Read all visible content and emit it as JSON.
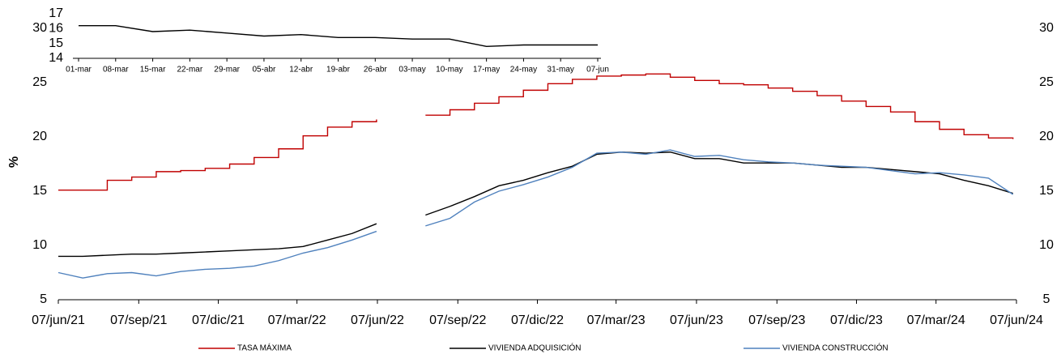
{
  "chart_data": [
    {
      "type": "line",
      "ylabel": "%",
      "x": [
        "2021-06-07",
        "2021-07-05",
        "2021-08-02",
        "2021-08-30",
        "2021-09-27",
        "2021-10-25",
        "2021-11-22",
        "2021-12-20",
        "2022-01-17",
        "2022-02-14",
        "2022-03-14",
        "2022-04-11",
        "2022-05-09",
        "2022-06-06",
        "2022-07-04",
        "2022-08-01",
        "2022-08-29",
        "2022-09-26",
        "2022-10-24",
        "2022-11-21",
        "2022-12-19",
        "2023-01-16",
        "2023-02-13",
        "2023-03-13",
        "2023-04-10",
        "2023-05-08",
        "2023-06-05",
        "2023-07-03",
        "2023-07-31",
        "2023-08-28",
        "2023-09-25",
        "2023-10-23",
        "2023-11-20",
        "2023-12-18",
        "2024-01-15",
        "2024-02-12",
        "2024-03-11",
        "2024-04-08",
        "2024-05-06",
        "2024-06-03"
      ],
      "xlim": [
        "2021-06-07",
        "2024-06-07"
      ],
      "xticks": [
        {
          "value": "2021-06-07",
          "label": "07/jun/21"
        },
        {
          "value": "2021-09-07",
          "label": "07/sep/21"
        },
        {
          "value": "2021-12-07",
          "label": "07/dic/21"
        },
        {
          "value": "2022-03-07",
          "label": "07/mar/22"
        },
        {
          "value": "2022-06-07",
          "label": "07/jun/22"
        },
        {
          "value": "2022-09-07",
          "label": "07/sep/22"
        },
        {
          "value": "2022-12-07",
          "label": "07/dic/22"
        },
        {
          "value": "2023-03-07",
          "label": "07/mar/23"
        },
        {
          "value": "2023-06-07",
          "label": "07/jun/23"
        },
        {
          "value": "2023-09-07",
          "label": "07/sep/23"
        },
        {
          "value": "2023-12-07",
          "label": "07/dic/23"
        },
        {
          "value": "2024-03-07",
          "label": "07/mar/24"
        },
        {
          "value": "2024-06-07",
          "label": "07/jun/24"
        }
      ],
      "ylim": [
        5,
        30
      ],
      "yticks": [
        5,
        10,
        15,
        20,
        25,
        30
      ],
      "grid": false,
      "series": [
        {
          "name": "TASA MÁXIMA",
          "color": "#c00000",
          "step": true,
          "values": [
            15.1,
            15.1,
            16.0,
            16.3,
            16.8,
            16.9,
            17.1,
            17.5,
            18.1,
            18.9,
            20.1,
            20.9,
            21.4,
            21.6,
            null,
            22.0,
            22.5,
            23.1,
            23.7,
            24.3,
            24.9,
            25.3,
            25.6,
            25.7,
            25.8,
            25.5,
            25.2,
            24.9,
            24.8,
            24.5,
            24.2,
            23.8,
            23.3,
            22.8,
            22.3,
            21.4,
            20.7,
            20.2,
            19.9,
            19.8
          ]
        },
        {
          "name": "VIVIENDA ADQUISICIÓN",
          "color": "#000000",
          "step": false,
          "values": [
            9.0,
            9.0,
            9.1,
            9.2,
            9.2,
            9.3,
            9.4,
            9.5,
            9.6,
            9.7,
            9.9,
            10.5,
            11.1,
            12.0,
            null,
            12.8,
            13.6,
            14.5,
            15.5,
            16.0,
            16.7,
            17.3,
            18.4,
            18.6,
            18.5,
            18.6,
            18.0,
            18.0,
            17.6,
            17.6,
            17.6,
            17.4,
            17.2,
            17.2,
            17.0,
            16.8,
            16.6,
            16.0,
            15.5,
            14.8
          ]
        },
        {
          "name": "VIVIENDA CONSTRUCCIÓN",
          "color": "#4f81bd",
          "step": false,
          "values": [
            7.5,
            7.0,
            7.4,
            7.5,
            7.2,
            7.6,
            7.8,
            7.9,
            8.1,
            8.6,
            9.3,
            9.8,
            10.5,
            11.3,
            null,
            11.8,
            12.5,
            14.0,
            15.0,
            15.6,
            16.3,
            17.2,
            18.5,
            18.6,
            18.4,
            18.8,
            18.2,
            18.3,
            17.9,
            17.7,
            17.6,
            17.4,
            17.3,
            17.2,
            16.9,
            16.6,
            16.7,
            16.5,
            16.2,
            14.7
          ]
        }
      ],
      "legend": "bottom"
    },
    {
      "type": "line",
      "categories": [
        "01-mar",
        "08-mar",
        "15-mar",
        "22-mar",
        "29-mar",
        "05-abr",
        "12-abr",
        "19-abr",
        "26-abr",
        "03-may",
        "10-may",
        "17-may",
        "24-may",
        "31-may",
        "07-jun"
      ],
      "values": [
        16.2,
        16.2,
        15.8,
        15.9,
        15.7,
        15.5,
        15.6,
        15.4,
        15.4,
        15.3,
        15.3,
        14.8,
        14.9,
        14.9,
        14.9
      ],
      "color": "#000000",
      "ylim": [
        14,
        17
      ],
      "yticks": [
        14,
        15,
        16,
        17
      ]
    }
  ]
}
